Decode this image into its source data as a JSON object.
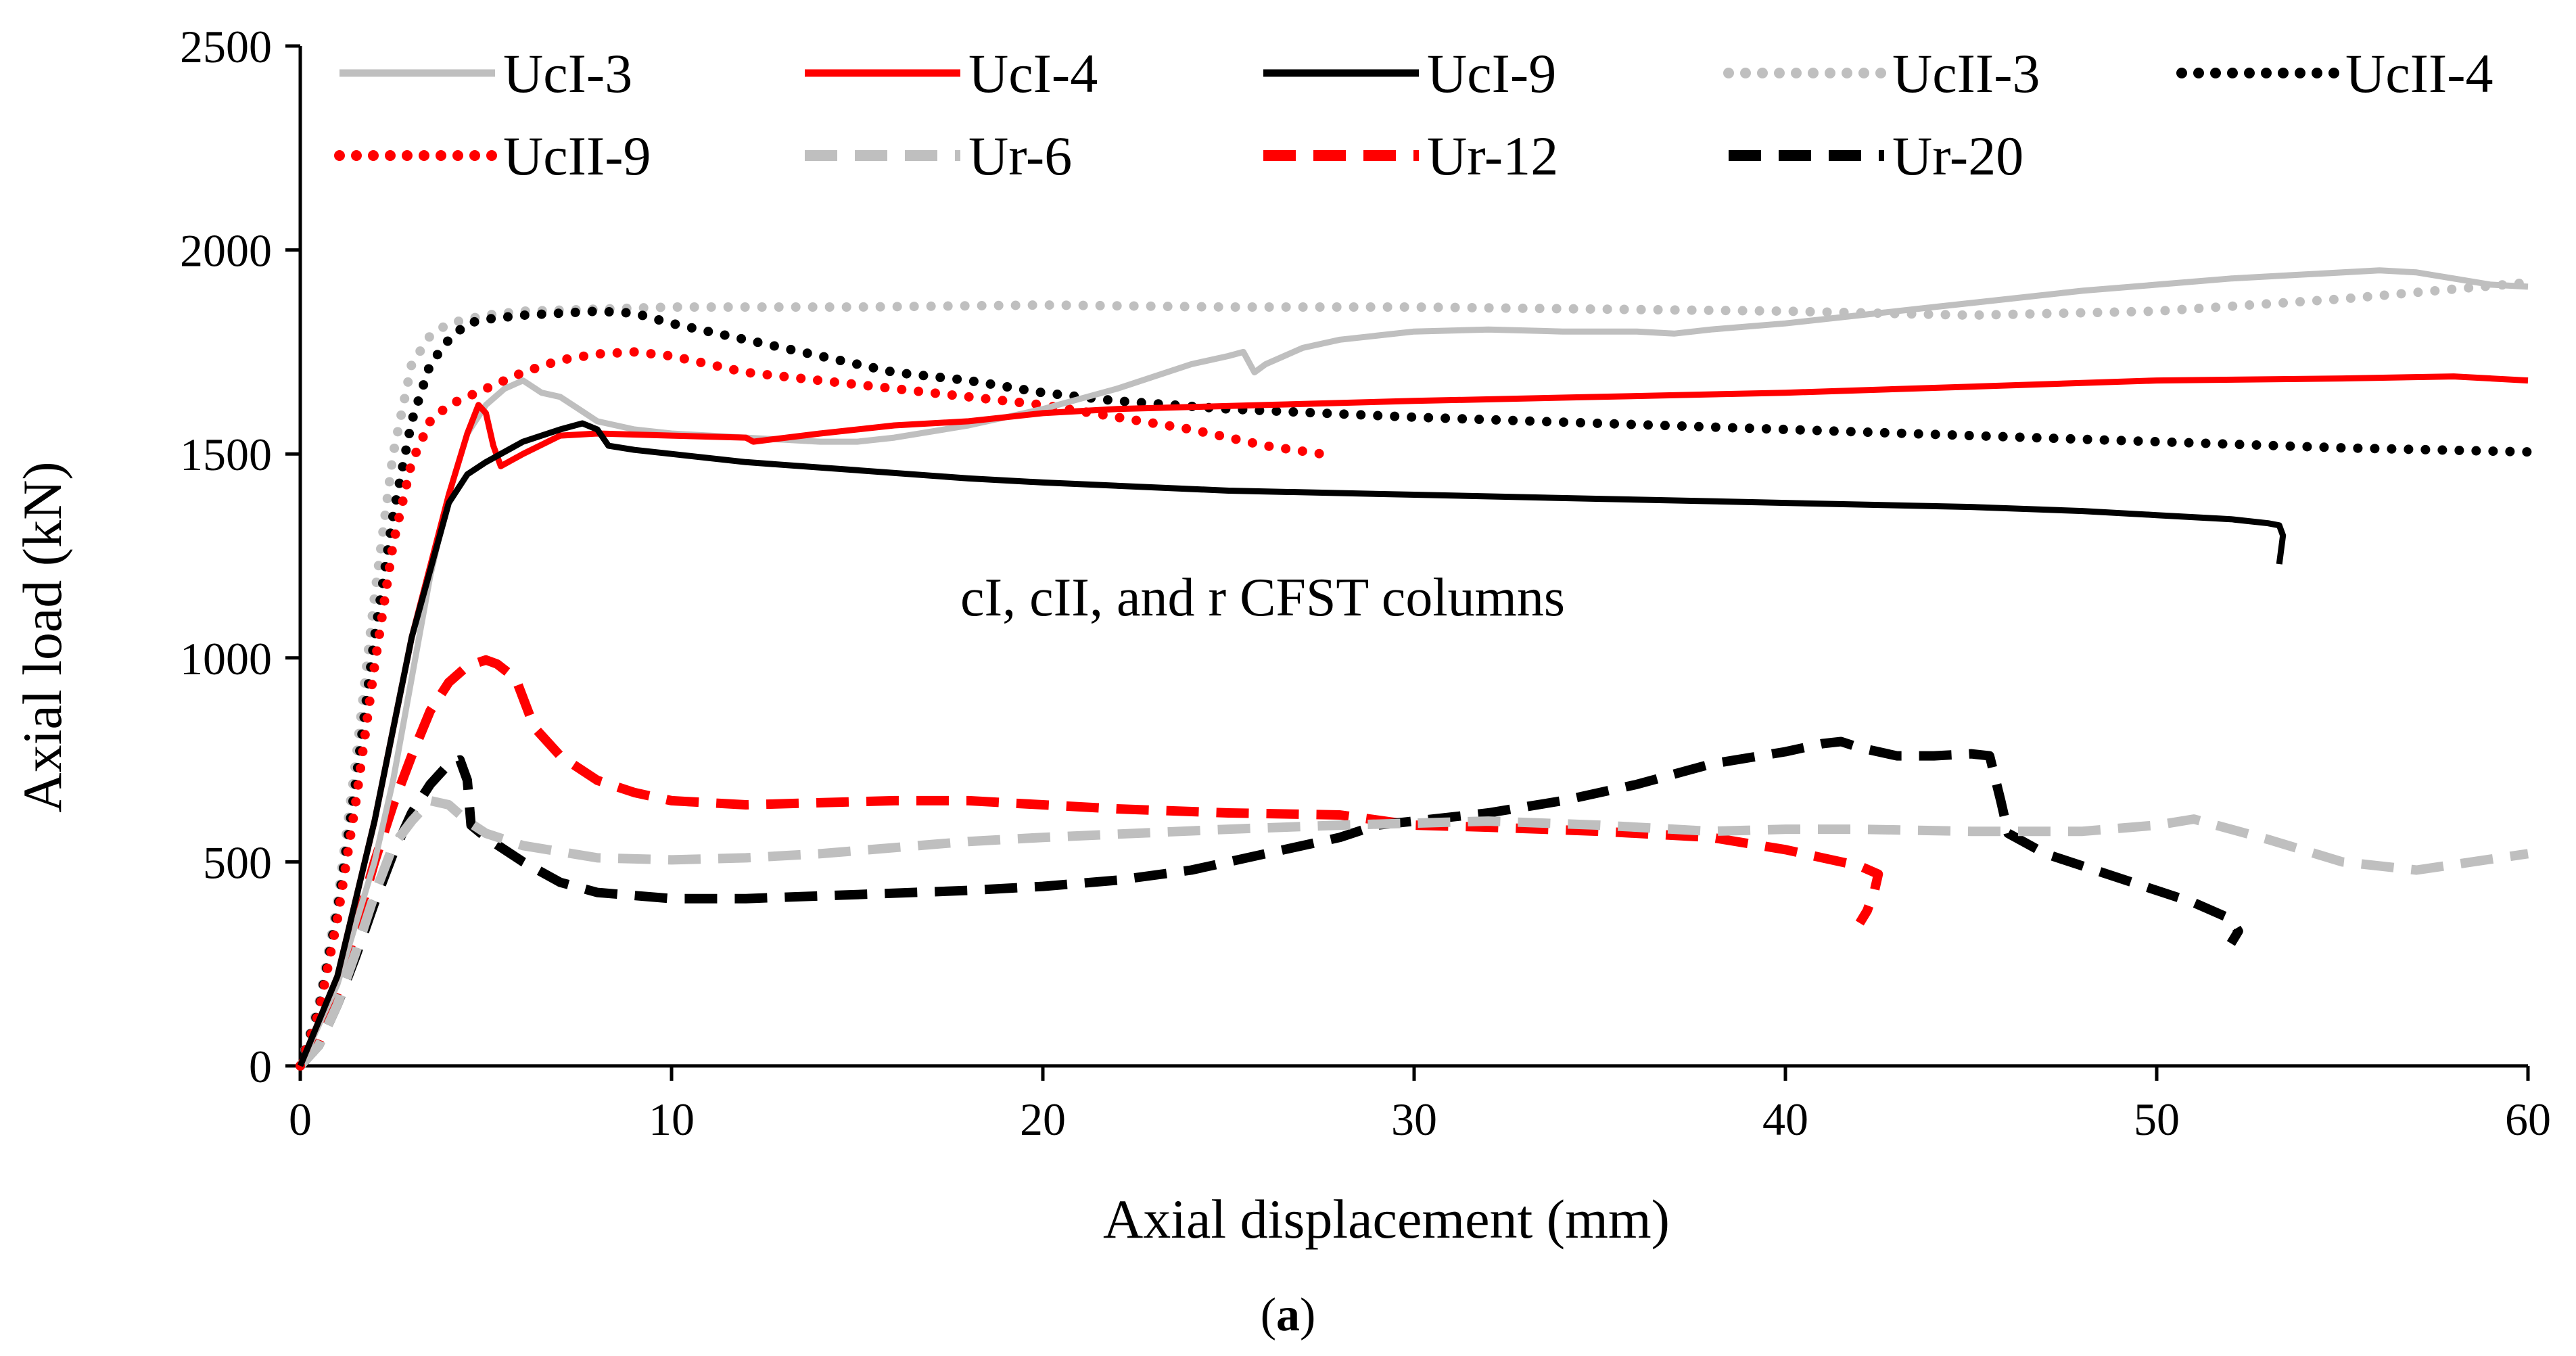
{
  "chart_data": {
    "type": "line",
    "title": "",
    "xlabel": "Axial displacement (mm)",
    "ylabel": "Axial load (kN)",
    "xlim": [
      0,
      60
    ],
    "ylim": [
      0,
      2500
    ],
    "xticks": [
      0,
      10,
      20,
      30,
      40,
      50,
      60
    ],
    "yticks": [
      0,
      500,
      1000,
      1500,
      2000,
      2500
    ],
    "grid": false,
    "legend_position": "top",
    "annotation": "cI, cII, and r CFST columns",
    "series": [
      {
        "name": "UcI-3",
        "color": "#bfbfbf",
        "style": "solid",
        "points": [
          [
            0,
            0
          ],
          [
            1,
            200
          ],
          [
            2,
            500
          ],
          [
            2.5,
            700
          ],
          [
            3,
            950
          ],
          [
            3.5,
            1200
          ],
          [
            4,
            1400
          ],
          [
            4.5,
            1550
          ],
          [
            5,
            1620
          ],
          [
            5.5,
            1660
          ],
          [
            6,
            1680
          ],
          [
            6.5,
            1650
          ],
          [
            7,
            1640
          ],
          [
            7.5,
            1610
          ],
          [
            8,
            1580
          ],
          [
            9,
            1560
          ],
          [
            10,
            1550
          ],
          [
            12,
            1540
          ],
          [
            14,
            1530
          ],
          [
            15,
            1530
          ],
          [
            16,
            1540
          ],
          [
            18,
            1570
          ],
          [
            20,
            1610
          ],
          [
            22,
            1660
          ],
          [
            24,
            1720
          ],
          [
            25,
            1740
          ],
          [
            25.4,
            1750
          ],
          [
            25.7,
            1700
          ],
          [
            26,
            1720
          ],
          [
            27,
            1760
          ],
          [
            28,
            1780
          ],
          [
            30,
            1800
          ],
          [
            32,
            1805
          ],
          [
            34,
            1800
          ],
          [
            36,
            1800
          ],
          [
            37,
            1795
          ],
          [
            38,
            1805
          ],
          [
            40,
            1820
          ],
          [
            42,
            1840
          ],
          [
            44,
            1860
          ],
          [
            46,
            1880
          ],
          [
            48,
            1900
          ],
          [
            50,
            1915
          ],
          [
            52,
            1930
          ],
          [
            54,
            1940
          ],
          [
            56,
            1950
          ],
          [
            57,
            1945
          ],
          [
            58,
            1930
          ],
          [
            59,
            1915
          ],
          [
            60,
            1910
          ]
        ]
      },
      {
        "name": "UcI-4",
        "color": "#ff0000",
        "style": "solid",
        "points": [
          [
            0,
            0
          ],
          [
            1,
            220
          ],
          [
            2,
            600
          ],
          [
            3,
            1050
          ],
          [
            4,
            1400
          ],
          [
            4.5,
            1550
          ],
          [
            4.8,
            1620
          ],
          [
            5,
            1600
          ],
          [
            5.2,
            1520
          ],
          [
            5.4,
            1470
          ],
          [
            6,
            1500
          ],
          [
            7,
            1545
          ],
          [
            8,
            1550
          ],
          [
            10,
            1545
          ],
          [
            12,
            1540
          ],
          [
            12.2,
            1530
          ],
          [
            14,
            1550
          ],
          [
            16,
            1570
          ],
          [
            18,
            1580
          ],
          [
            20,
            1600
          ],
          [
            22,
            1610
          ],
          [
            24,
            1615
          ],
          [
            26,
            1620
          ],
          [
            30,
            1630
          ],
          [
            35,
            1640
          ],
          [
            40,
            1650
          ],
          [
            45,
            1665
          ],
          [
            50,
            1680
          ],
          [
            55,
            1685
          ],
          [
            58,
            1690
          ],
          [
            60,
            1680
          ]
        ]
      },
      {
        "name": "UcI-9",
        "color": "#000000",
        "style": "solid",
        "points": [
          [
            0,
            0
          ],
          [
            1,
            220
          ],
          [
            2,
            600
          ],
          [
            3,
            1050
          ],
          [
            4,
            1380
          ],
          [
            4.5,
            1450
          ],
          [
            5,
            1480
          ],
          [
            6,
            1530
          ],
          [
            7,
            1560
          ],
          [
            7.6,
            1575
          ],
          [
            8,
            1560
          ],
          [
            8.3,
            1520
          ],
          [
            9,
            1510
          ],
          [
            10,
            1500
          ],
          [
            12,
            1480
          ],
          [
            15,
            1460
          ],
          [
            18,
            1440
          ],
          [
            20,
            1430
          ],
          [
            25,
            1410
          ],
          [
            30,
            1400
          ],
          [
            35,
            1390
          ],
          [
            40,
            1380
          ],
          [
            45,
            1370
          ],
          [
            48,
            1360
          ],
          [
            50,
            1350
          ],
          [
            52,
            1340
          ],
          [
            53,
            1330
          ],
          [
            53.3,
            1325
          ],
          [
            53.4,
            1300
          ],
          [
            53.3,
            1230
          ]
        ]
      },
      {
        "name": "UcII-3",
        "color": "#bfbfbf",
        "style": "dotted",
        "points": [
          [
            0,
            0
          ],
          [
            0.5,
            150
          ],
          [
            1,
            400
          ],
          [
            1.5,
            750
          ],
          [
            2,
            1150
          ],
          [
            2.5,
            1500
          ],
          [
            3,
            1720
          ],
          [
            3.5,
            1790
          ],
          [
            4,
            1820
          ],
          [
            5,
            1840
          ],
          [
            6,
            1850
          ],
          [
            8,
            1855
          ],
          [
            10,
            1860
          ],
          [
            15,
            1860
          ],
          [
            20,
            1865
          ],
          [
            25,
            1860
          ],
          [
            30,
            1860
          ],
          [
            35,
            1855
          ],
          [
            40,
            1850
          ],
          [
            45,
            1840
          ],
          [
            50,
            1850
          ],
          [
            55,
            1880
          ],
          [
            60,
            1920
          ]
        ]
      },
      {
        "name": "UcII-4",
        "color": "#000000",
        "style": "dotted",
        "points": [
          [
            0,
            0
          ],
          [
            0.5,
            140
          ],
          [
            1,
            380
          ],
          [
            1.5,
            700
          ],
          [
            2,
            1050
          ],
          [
            2.5,
            1350
          ],
          [
            3,
            1580
          ],
          [
            3.5,
            1720
          ],
          [
            4,
            1780
          ],
          [
            4.5,
            1820
          ],
          [
            5,
            1830
          ],
          [
            5.5,
            1835
          ],
          [
            6,
            1840
          ],
          [
            7,
            1845
          ],
          [
            8,
            1850
          ],
          [
            9,
            1845
          ],
          [
            10,
            1820
          ],
          [
            12,
            1780
          ],
          [
            14,
            1740
          ],
          [
            16,
            1700
          ],
          [
            18,
            1680
          ],
          [
            20,
            1650
          ],
          [
            22,
            1630
          ],
          [
            25,
            1610
          ],
          [
            30,
            1590
          ],
          [
            35,
            1575
          ],
          [
            40,
            1560
          ],
          [
            45,
            1545
          ],
          [
            50,
            1530
          ],
          [
            55,
            1515
          ],
          [
            60,
            1505
          ]
        ]
      },
      {
        "name": "UcII-9",
        "color": "#ff0000",
        "style": "dotted",
        "points": [
          [
            0,
            0
          ],
          [
            0.5,
            130
          ],
          [
            1,
            360
          ],
          [
            1.5,
            650
          ],
          [
            2,
            980
          ],
          [
            2.5,
            1280
          ],
          [
            3,
            1480
          ],
          [
            3.5,
            1580
          ],
          [
            4,
            1620
          ],
          [
            5,
            1660
          ],
          [
            6,
            1700
          ],
          [
            7,
            1730
          ],
          [
            8,
            1745
          ],
          [
            9,
            1750
          ],
          [
            10,
            1740
          ],
          [
            12,
            1700
          ],
          [
            14,
            1680
          ],
          [
            16,
            1660
          ],
          [
            18,
            1640
          ],
          [
            20,
            1620
          ],
          [
            22,
            1590
          ],
          [
            24,
            1560
          ],
          [
            26,
            1520
          ],
          [
            27.5,
            1500
          ]
        ]
      },
      {
        "name": "Ur-6",
        "color": "#bfbfbf",
        "style": "dashed",
        "points": [
          [
            0,
            0
          ],
          [
            0.5,
            50
          ],
          [
            1,
            150
          ],
          [
            1.5,
            280
          ],
          [
            2,
            420
          ],
          [
            2.5,
            540
          ],
          [
            3,
            600
          ],
          [
            3.5,
            650
          ],
          [
            4,
            640
          ],
          [
            4.5,
            600
          ],
          [
            5,
            570
          ],
          [
            6,
            540
          ],
          [
            8,
            510
          ],
          [
            10,
            505
          ],
          [
            12,
            510
          ],
          [
            14,
            520
          ],
          [
            16,
            535
          ],
          [
            18,
            550
          ],
          [
            20,
            560
          ],
          [
            25,
            580
          ],
          [
            28,
            590
          ],
          [
            30,
            595
          ],
          [
            32,
            600
          ],
          [
            35,
            590
          ],
          [
            38,
            575
          ],
          [
            40,
            580
          ],
          [
            42,
            580
          ],
          [
            45,
            575
          ],
          [
            48,
            575
          ],
          [
            50,
            590
          ],
          [
            51,
            605
          ],
          [
            52,
            580
          ],
          [
            53,
            555
          ],
          [
            55,
            500
          ],
          [
            57,
            480
          ],
          [
            60,
            520
          ]
        ]
      },
      {
        "name": "Ur-12",
        "color": "#ff0000",
        "style": "dashed",
        "points": [
          [
            0,
            0
          ],
          [
            0.5,
            60
          ],
          [
            1,
            180
          ],
          [
            1.5,
            340
          ],
          [
            2,
            500
          ],
          [
            2.5,
            640
          ],
          [
            3,
            760
          ],
          [
            3.5,
            870
          ],
          [
            4,
            940
          ],
          [
            4.5,
            980
          ],
          [
            5,
            995
          ],
          [
            5.3,
            985
          ],
          [
            5.8,
            950
          ],
          [
            6.3,
            830
          ],
          [
            7,
            760
          ],
          [
            8,
            700
          ],
          [
            9,
            670
          ],
          [
            10,
            650
          ],
          [
            12,
            640
          ],
          [
            14,
            645
          ],
          [
            16,
            650
          ],
          [
            18,
            650
          ],
          [
            20,
            640
          ],
          [
            22,
            630
          ],
          [
            25,
            620
          ],
          [
            28,
            615
          ],
          [
            30,
            590
          ],
          [
            32,
            585
          ],
          [
            35,
            575
          ],
          [
            38,
            560
          ],
          [
            40,
            530
          ],
          [
            41,
            510
          ],
          [
            42,
            490
          ],
          [
            42.5,
            470
          ],
          [
            42.4,
            430
          ],
          [
            42.2,
            380
          ],
          [
            42,
            350
          ]
        ]
      },
      {
        "name": "Ur-20",
        "color": "#000000",
        "style": "dashed",
        "points": [
          [
            0,
            0
          ],
          [
            0.5,
            50
          ],
          [
            1,
            150
          ],
          [
            1.5,
            270
          ],
          [
            2,
            400
          ],
          [
            2.5,
            520
          ],
          [
            3,
            620
          ],
          [
            3.5,
            690
          ],
          [
            4,
            740
          ],
          [
            4.3,
            750
          ],
          [
            4.5,
            700
          ],
          [
            4.6,
            590
          ],
          [
            5,
            560
          ],
          [
            6,
            500
          ],
          [
            7,
            450
          ],
          [
            8,
            425
          ],
          [
            10,
            410
          ],
          [
            12,
            410
          ],
          [
            15,
            420
          ],
          [
            18,
            430
          ],
          [
            20,
            440
          ],
          [
            22,
            455
          ],
          [
            24,
            480
          ],
          [
            26,
            520
          ],
          [
            28,
            560
          ],
          [
            29,
            590
          ],
          [
            30,
            600
          ],
          [
            32,
            620
          ],
          [
            34,
            650
          ],
          [
            36,
            690
          ],
          [
            38,
            740
          ],
          [
            40,
            770
          ],
          [
            41,
            790
          ],
          [
            41.5,
            795
          ],
          [
            42,
            780
          ],
          [
            43,
            760
          ],
          [
            44,
            760
          ],
          [
            45,
            765
          ],
          [
            45.5,
            760
          ],
          [
            45.8,
            650
          ],
          [
            46,
            570
          ],
          [
            47,
            520
          ],
          [
            48,
            490
          ],
          [
            50,
            430
          ],
          [
            51,
            400
          ],
          [
            52,
            360
          ],
          [
            52.2,
            330
          ],
          [
            52,
            300
          ]
        ]
      }
    ]
  },
  "panel_label": {
    "open": "(",
    "letter": "a",
    "close": ")"
  }
}
